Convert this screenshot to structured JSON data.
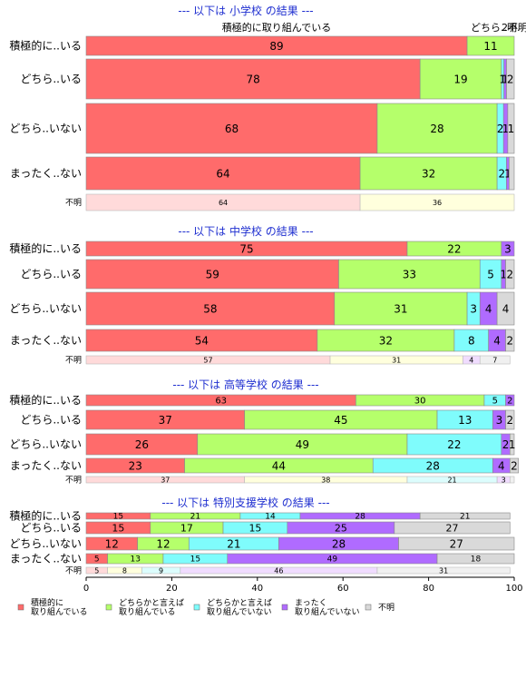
{
  "chart_data": {
    "type": "bar",
    "orientation": "horizontal",
    "stacked": true,
    "x_range": [
      0,
      100
    ],
    "x_ticks": [
      "0",
      "20",
      "40",
      "60",
      "80",
      "100"
    ],
    "colors": [
      "#ff6b6b",
      "#b5ff6b",
      "#7ffcfc",
      "#b06bff",
      "#d9d9d9"
    ],
    "missing_colors": [
      "#ffdada",
      "#ffffdd",
      "#dcfdfd",
      "#f0dcff",
      "#f0f0f0"
    ],
    "legend": [
      {
        "lines": [
          "積極的に",
          "取り組んでいる"
        ]
      },
      {
        "lines": [
          "どちらかと言えば",
          "取り組んでいる"
        ]
      },
      {
        "lines": [
          "どちらかと言えば",
          "取り組んでいない"
        ]
      },
      {
        "lines": [
          "まったく",
          "取り組んでいない"
        ]
      },
      {
        "lines": [
          "不明"
        ]
      }
    ],
    "annotations": {
      "header_bar": "積極的に取り組んでいる",
      "header_edge": "どちら..明.",
      "header_edge_numbers": "2不明"
    },
    "panels": [
      {
        "title": "--- 以下は 小学校 の結果 ---",
        "rows": [
          {
            "label": "積極的に..いる",
            "values": [
              89,
              11,
              0,
              0,
              0
            ],
            "labels": [
              "89",
              "11",
              "",
              "",
              ""
            ]
          },
          {
            "label": "どちら..いる",
            "values": [
              78,
              19,
              0.6,
              0.6,
              1.8
            ],
            "labels": [
              "78",
              "19",
              "1",
              "1",
              "2"
            ]
          },
          {
            "label": "どちら..いない",
            "values": [
              68,
              28,
              1.5,
              1.0,
              1.5
            ],
            "labels": [
              "68",
              "28",
              "2",
              "1",
              "1"
            ]
          },
          {
            "label": "まったく..ない",
            "values": [
              64,
              32,
              2.2,
              0.6,
              1.2
            ],
            "labels": [
              "64",
              "32",
              "2",
              "1",
              ""
            ]
          },
          {
            "label": "不明",
            "missing": true,
            "values": [
              64,
              36,
              0,
              0,
              0
            ],
            "labels": [
              "64",
              "36",
              "",
              "",
              ""
            ]
          }
        ]
      },
      {
        "title": "--- 以下は 中学校 の結果 ---",
        "rows": [
          {
            "label": "積極的に..いる",
            "values": [
              75,
              22,
              0,
              3,
              0
            ],
            "labels": [
              "75",
              "22",
              "",
              "3",
              ""
            ]
          },
          {
            "label": "どちら..いる",
            "values": [
              59,
              33,
              5,
              1,
              2
            ],
            "labels": [
              "59",
              "33",
              "5",
              "1",
              "2"
            ]
          },
          {
            "label": "どちら..いない",
            "values": [
              58,
              31,
              3,
              4,
              4
            ],
            "labels": [
              "58",
              "31",
              "3",
              "4",
              "4"
            ]
          },
          {
            "label": "まったく..ない",
            "values": [
              54,
              32,
              8,
              4,
              2
            ],
            "labels": [
              "54",
              "32",
              "8",
              "4",
              "2"
            ]
          },
          {
            "label": "不明",
            "missing": true,
            "values": [
              57,
              31,
              0,
              4,
              7
            ],
            "labels": [
              "57",
              "31",
              "",
              "4",
              "7"
            ]
          }
        ]
      },
      {
        "title": "--- 以下は 高等学校 の結果 ---",
        "rows": [
          {
            "label": "積極的に..いる",
            "values": [
              63,
              30,
              5,
              2,
              0
            ],
            "labels": [
              "63",
              "30",
              "5",
              "2",
              ""
            ]
          },
          {
            "label": "どちら..いる",
            "values": [
              37,
              45,
              13,
              3,
              2
            ],
            "labels": [
              "37",
              "45",
              "13",
              "3",
              "2"
            ]
          },
          {
            "label": "どちら..いない",
            "values": [
              26,
              49,
              22,
              2,
              1
            ],
            "labels": [
              "26",
              "49",
              "22",
              "2",
              "1"
            ]
          },
          {
            "label": "まったく..ない",
            "values": [
              23,
              44,
              28,
              4,
              2
            ],
            "labels": [
              "23",
              "44",
              "28",
              "4",
              "2"
            ]
          },
          {
            "label": "不明",
            "missing": true,
            "values": [
              37,
              38,
              21,
              3,
              1
            ],
            "labels": [
              "37",
              "38",
              "21",
              "3",
              ""
            ]
          }
        ]
      },
      {
        "title": "--- 以下は 特別支援学校 の結果 ---",
        "rows": [
          {
            "label": "積極的に..いる",
            "values": [
              15,
              21,
              14,
              28,
              21
            ],
            "labels": [
              "15",
              "21",
              "14",
              "28",
              "21"
            ]
          },
          {
            "label": "どちら..いる",
            "values": [
              15,
              17,
              15,
              25,
              27
            ],
            "labels": [
              "15",
              "17",
              "15",
              "25",
              "27"
            ]
          },
          {
            "label": "どちら..いない",
            "values": [
              12,
              12,
              21,
              28,
              27
            ],
            "labels": [
              "12",
              "12",
              "21",
              "28",
              "27"
            ]
          },
          {
            "label": "まったく..ない",
            "values": [
              5,
              13,
              15,
              49,
              18
            ],
            "labels": [
              "5",
              "13",
              "15",
              "49",
              "18"
            ]
          },
          {
            "label": "不明",
            "missing": true,
            "values": [
              5,
              8,
              9,
              46,
              31
            ],
            "labels": [
              "5",
              "8",
              "9",
              "46",
              "31"
            ]
          }
        ]
      }
    ]
  }
}
